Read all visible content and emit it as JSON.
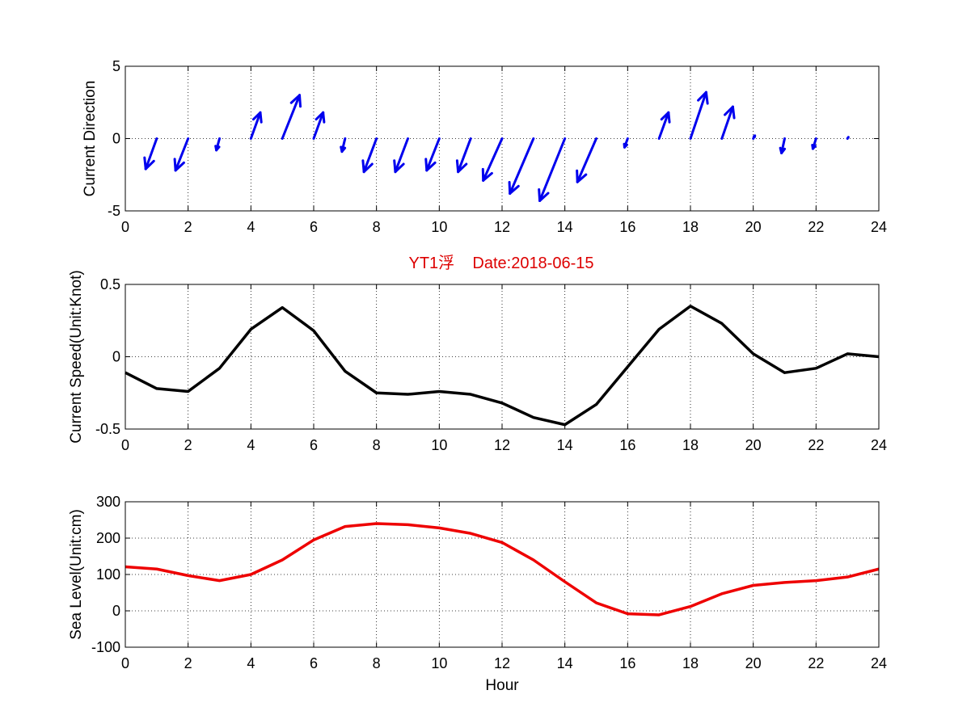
{
  "figure_title": "YT1浮    Date:2018-06-15",
  "colors": {
    "quiver": "#0000ee",
    "speed": "#000000",
    "sea_level": "#ee0000",
    "title": "#dd0000",
    "grid": "#000000"
  },
  "chart_data": [
    {
      "type": "quiver",
      "ylabel": "Current Direction",
      "xlabel": "",
      "xlim": [
        0,
        24
      ],
      "ylim": [
        -5,
        5
      ],
      "xticks": [
        "0",
        "2",
        "4",
        "6",
        "8",
        "10",
        "12",
        "14",
        "16",
        "18",
        "20",
        "22",
        "24"
      ],
      "yticks": [
        "-5",
        "0",
        "5"
      ],
      "grid": true,
      "x": [
        1,
        2,
        3,
        4,
        5,
        6,
        7,
        8,
        9,
        10,
        11,
        12,
        13,
        14,
        15,
        16,
        17,
        18,
        19,
        20,
        21,
        22,
        23
      ],
      "u": [
        -0.35,
        -0.4,
        -0.1,
        0.3,
        0.55,
        0.3,
        -0.1,
        -0.4,
        -0.4,
        -0.4,
        -0.4,
        -0.6,
        -0.75,
        -0.8,
        -0.6,
        -0.1,
        0.3,
        0.5,
        0.35,
        0.05,
        -0.1,
        -0.1,
        0.03
      ],
      "v": [
        -2.1,
        -2.2,
        -0.8,
        1.8,
        3.0,
        1.8,
        -0.9,
        -2.3,
        -2.3,
        -2.2,
        -2.3,
        -2.9,
        -3.8,
        -4.3,
        -3.0,
        -0.6,
        1.8,
        3.2,
        2.2,
        0.2,
        -1.0,
        -0.7,
        0.1
      ]
    },
    {
      "type": "line",
      "ylabel": "Current Speed(Unit:Knot)",
      "xlabel": "",
      "xlim": [
        0,
        24
      ],
      "ylim": [
        -0.5,
        0.5
      ],
      "xticks": [
        "0",
        "2",
        "4",
        "6",
        "8",
        "10",
        "12",
        "14",
        "16",
        "18",
        "20",
        "22",
        "24"
      ],
      "yticks": [
        "-0.5",
        "0",
        "0.5"
      ],
      "grid": true,
      "x": [
        0,
        1,
        2,
        3,
        4,
        5,
        6,
        7,
        8,
        9,
        10,
        11,
        12,
        13,
        14,
        15,
        16,
        17,
        18,
        19,
        20,
        21,
        22,
        23,
        24
      ],
      "y": [
        -0.11,
        -0.22,
        -0.24,
        -0.08,
        0.19,
        0.34,
        0.18,
        -0.1,
        -0.25,
        -0.26,
        -0.24,
        -0.26,
        -0.32,
        -0.42,
        -0.47,
        -0.33,
        -0.07,
        0.19,
        0.35,
        0.23,
        0.02,
        -0.11,
        -0.08,
        0.02,
        0.0
      ]
    },
    {
      "type": "line",
      "ylabel": "Sea Level(Unit:cm)",
      "xlabel": "Hour",
      "xlim": [
        0,
        24
      ],
      "ylim": [
        -100,
        300
      ],
      "xticks": [
        "0",
        "2",
        "4",
        "6",
        "8",
        "10",
        "12",
        "14",
        "16",
        "18",
        "20",
        "22",
        "24"
      ],
      "yticks": [
        "-100",
        "0",
        "100",
        "200",
        "300"
      ],
      "grid": true,
      "x": [
        0,
        1,
        2,
        3,
        4,
        5,
        6,
        7,
        8,
        9,
        10,
        11,
        12,
        13,
        14,
        15,
        16,
        17,
        18,
        19,
        20,
        21,
        22,
        23,
        24
      ],
      "y": [
        121,
        115,
        97,
        83,
        100,
        140,
        195,
        232,
        240,
        237,
        228,
        213,
        188,
        140,
        80,
        22,
        -8,
        -11,
        12,
        47,
        70,
        78,
        83,
        93,
        115
      ]
    }
  ]
}
